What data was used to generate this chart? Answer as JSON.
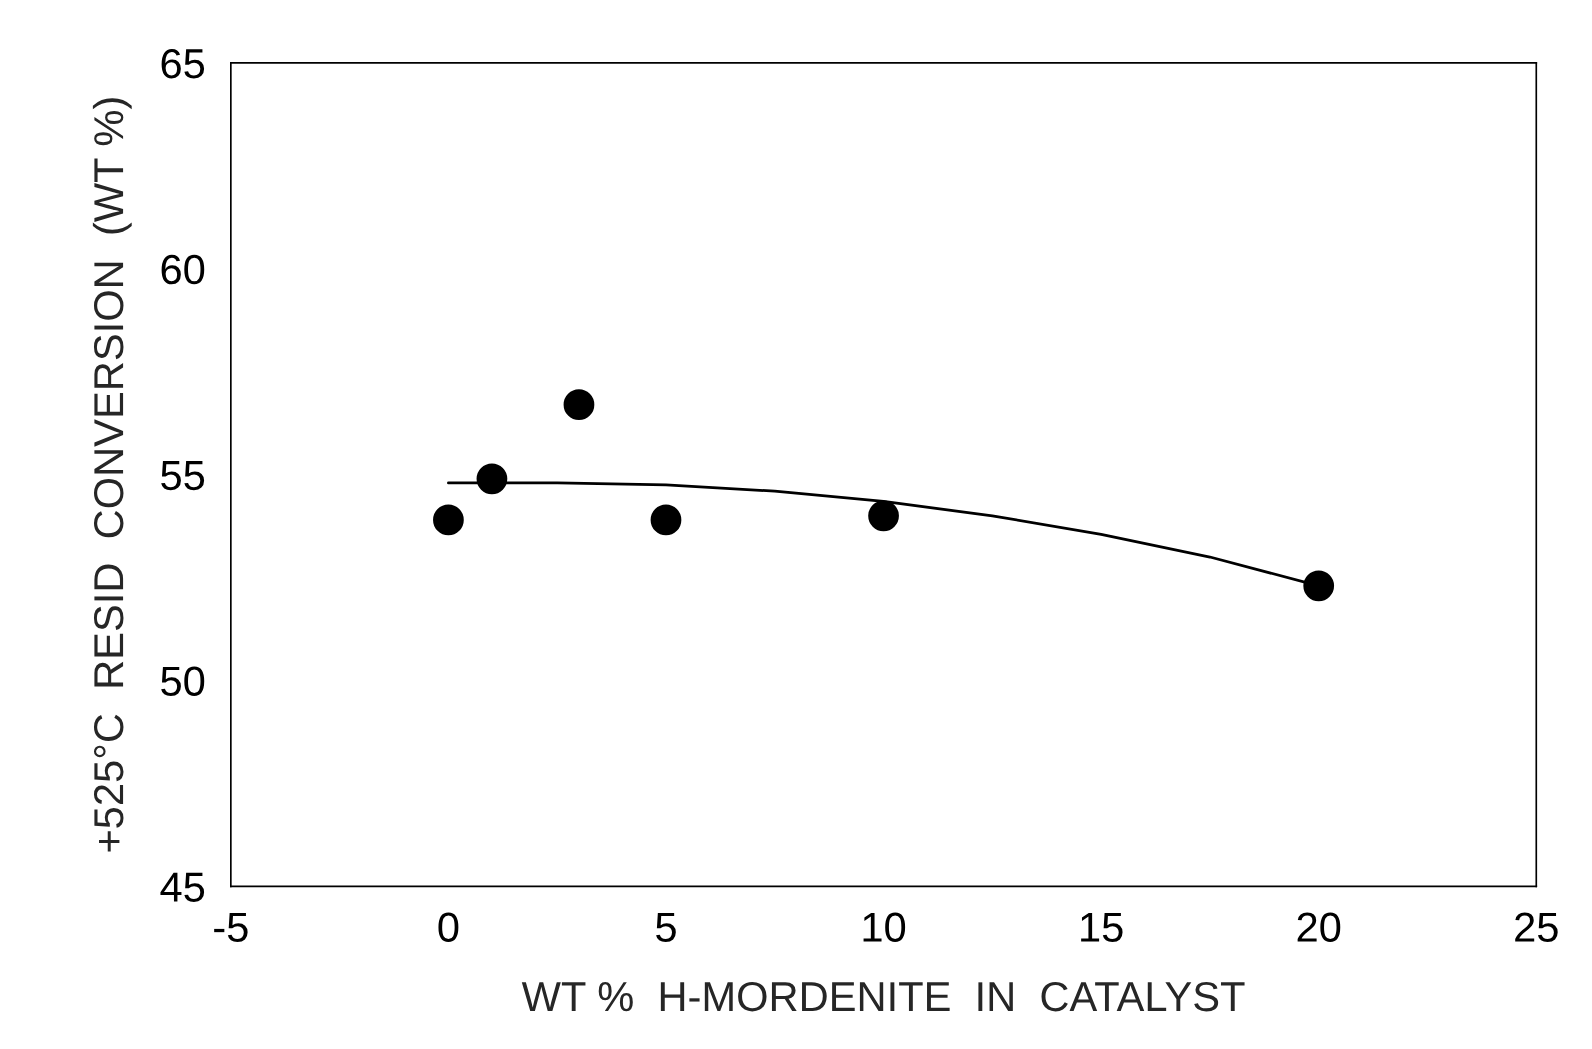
{
  "chart_data": {
    "type": "scatter",
    "xlabel": "WT %  H-MORDENITE  IN  CATALYST",
    "ylabel": "+525°C  RESID  CONVERSION  (WT %)",
    "series": [
      {
        "color": "#000000",
        "marker": "circle",
        "x": [
          0,
          1,
          3,
          5,
          10,
          20
        ],
        "values": [
          53.9,
          54.9,
          56.7,
          53.9,
          54.0,
          52.3
        ]
      },
      {
        "type": "line",
        "color": "#000000",
        "marker": "none",
        "line_style": "solid",
        "x": [
          0,
          2.5,
          5,
          7.5,
          10,
          12.5,
          15,
          17.5,
          20
        ],
        "values": [
          54.8,
          54.8,
          54.75,
          54.6,
          54.35,
          54.0,
          53.55,
          53.0,
          52.3
        ]
      }
    ],
    "xlim": [
      -5,
      25
    ],
    "ylim": [
      45,
      65
    ],
    "xticks": [
      -5,
      0,
      5,
      10,
      15,
      20,
      25
    ],
    "yticks": [
      45,
      50,
      55,
      60,
      65
    ],
    "grid": false,
    "legend": false
  }
}
